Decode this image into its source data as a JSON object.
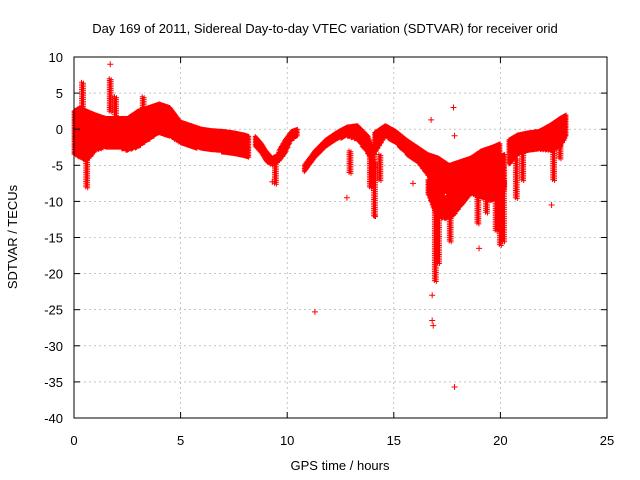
{
  "chart_data": {
    "type": "scatter",
    "title": "Day 169 of 2011, Sidereal Day-to-day VTEC variation (SDTVAR) for receiver orid",
    "xlabel": "GPS time / hours",
    "ylabel": "SDTVAR / TECUs",
    "xlim": [
      0,
      25
    ],
    "ylim": [
      -40,
      10
    ],
    "xticks": [
      "0",
      "5",
      "10",
      "15",
      "20",
      "25"
    ],
    "yticks": [
      "10",
      "5",
      "0",
      "-5",
      "-10",
      "-15",
      "-20",
      "-25",
      "-30",
      "-35",
      "-40"
    ],
    "grid": true,
    "marker": "+",
    "colors": {
      "series": "#ff0000",
      "grid": "#a0a0a0",
      "axes": "#000000"
    },
    "bands": [
      {
        "x": [
          0.0,
          0.3,
          0.6,
          1.0,
          1.5,
          2.0,
          2.5,
          3.0,
          3.5,
          4.0,
          4.5,
          5.0,
          5.5,
          6.0,
          6.5,
          7.0,
          7.5,
          8.0,
          8.2
        ],
        "lo": [
          -3.5,
          -4.0,
          -4.5,
          -3.0,
          -2.5,
          -2.5,
          -3.0,
          -2.5,
          -1.5,
          -0.5,
          -1.0,
          -2.0,
          -2.5,
          -2.8,
          -3.0,
          -3.2,
          -3.5,
          -3.8,
          -4.0
        ],
        "hi": [
          2.5,
          3.0,
          2.5,
          2.0,
          1.5,
          1.5,
          1.5,
          2.5,
          3.0,
          3.5,
          3.0,
          1.0,
          0.5,
          0.0,
          -0.2,
          -0.3,
          -0.5,
          -0.8,
          -1.0
        ]
      },
      {
        "x": [
          8.5,
          8.8,
          9.0,
          9.3,
          9.6
        ],
        "lo": [
          -2.5,
          -3.5,
          -4.5,
          -5.0,
          -4.5
        ],
        "hi": [
          -1.0,
          -2.0,
          -3.0,
          -4.0,
          -3.5
        ]
      },
      {
        "x": [
          9.6,
          9.9,
          10.2,
          10.5
        ],
        "lo": [
          -4.5,
          -3.5,
          -1.5,
          -1.0
        ],
        "hi": [
          -3.0,
          -1.5,
          -0.3,
          0.0
        ]
      },
      {
        "x": [
          10.8,
          11.3,
          11.8,
          12.3,
          12.8,
          13.3,
          13.8,
          14.1
        ],
        "lo": [
          -6.0,
          -4.0,
          -2.5,
          -1.5,
          -1.0,
          -1.5,
          -3.5,
          -5.5
        ],
        "hi": [
          -5.0,
          -3.0,
          -1.5,
          -0.5,
          0.3,
          0.5,
          -1.0,
          -3.0
        ]
      },
      {
        "x": [
          14.1,
          14.6,
          15.1,
          15.6,
          16.1,
          16.6,
          17.1,
          17.6,
          18.1,
          18.6,
          19.1,
          19.6,
          20.0
        ],
        "lo": [
          -3.5,
          -1.0,
          -2.0,
          -3.5,
          -4.5,
          -6.5,
          -8.5,
          -9.0,
          -8.0,
          -9.0,
          -9.5,
          -10.0,
          -9.5
        ],
        "hi": [
          -0.5,
          0.5,
          -0.3,
          -1.5,
          -2.5,
          -3.5,
          -4.0,
          -5.0,
          -4.5,
          -4.0,
          -3.0,
          -2.5,
          -2.0
        ]
      },
      {
        "x": [
          16.6,
          17.0,
          17.4,
          17.8,
          18.2,
          18.6,
          19.0,
          19.4,
          19.8,
          20.2
        ],
        "lo": [
          -9.0,
          -12.0,
          -12.5,
          -12.0,
          -10.5,
          -9.0,
          -8.5,
          -9.0,
          -9.5,
          -8.5
        ],
        "hi": [
          -7.0,
          -8.5,
          -9.5,
          -9.0,
          -8.0,
          -6.5,
          -5.5,
          -4.5,
          -4.0,
          -3.5
        ]
      },
      {
        "x": [
          20.4,
          20.8,
          21.3,
          21.8,
          22.3,
          22.8,
          23.1
        ],
        "lo": [
          -5.0,
          -3.5,
          -3.0,
          -2.8,
          -3.0,
          -2.5,
          -1.0
        ],
        "hi": [
          -1.5,
          -0.8,
          -0.5,
          -0.3,
          0.5,
          1.5,
          2.0
        ]
      }
    ],
    "spikes": [
      {
        "x": 0.35,
        "from": -3.0,
        "to": 6.5
      },
      {
        "x": 0.55,
        "from": -4.0,
        "to": -8.0
      },
      {
        "x": 1.65,
        "from": 2.5,
        "to": 7.0
      },
      {
        "x": 1.9,
        "from": 2.0,
        "to": 4.5
      },
      {
        "x": 3.2,
        "from": 2.0,
        "to": 4.5
      },
      {
        "x": 9.4,
        "from": -4.0,
        "to": -7.5
      },
      {
        "x": 12.9,
        "from": -3.0,
        "to": -6.0
      },
      {
        "x": 13.85,
        "from": -2.5,
        "to": -8.0
      },
      {
        "x": 14.05,
        "from": -4.5,
        "to": -12.0
      },
      {
        "x": 14.3,
        "from": -3.5,
        "to": -7.0
      },
      {
        "x": 16.9,
        "from": -9.0,
        "to": -21.0
      },
      {
        "x": 17.05,
        "from": -9.0,
        "to": -18.5
      },
      {
        "x": 17.6,
        "from": -11.0,
        "to": -15.5
      },
      {
        "x": 18.9,
        "from": -8.0,
        "to": -13.0
      },
      {
        "x": 19.3,
        "from": -8.5,
        "to": -11.5
      },
      {
        "x": 19.75,
        "from": -9.0,
        "to": -14.0
      },
      {
        "x": 19.95,
        "from": -9.0,
        "to": -16.0
      },
      {
        "x": 20.1,
        "from": -7.0,
        "to": -15.5
      },
      {
        "x": 20.7,
        "from": -4.0,
        "to": -9.5
      },
      {
        "x": 21.0,
        "from": -3.0,
        "to": -7.0
      },
      {
        "x": 22.45,
        "from": -2.0,
        "to": -7.0
      },
      {
        "x": 22.75,
        "from": 0.0,
        "to": -4.0
      }
    ],
    "outliers": [
      {
        "x": 1.7,
        "y": 9.0
      },
      {
        "x": 9.3,
        "y": -7.3
      },
      {
        "x": 11.3,
        "y": -25.3
      },
      {
        "x": 12.8,
        "y": -9.5
      },
      {
        "x": 14.1,
        "y": -12.0
      },
      {
        "x": 15.9,
        "y": -7.5
      },
      {
        "x": 16.75,
        "y": 1.3
      },
      {
        "x": 16.8,
        "y": -26.5
      },
      {
        "x": 16.85,
        "y": -27.2
      },
      {
        "x": 16.8,
        "y": -23.0
      },
      {
        "x": 17.85,
        "y": -0.9
      },
      {
        "x": 17.8,
        "y": 3.0
      },
      {
        "x": 17.85,
        "y": -35.7
      },
      {
        "x": 19.0,
        "y": -16.5
      },
      {
        "x": 22.4,
        "y": -10.5
      }
    ]
  }
}
